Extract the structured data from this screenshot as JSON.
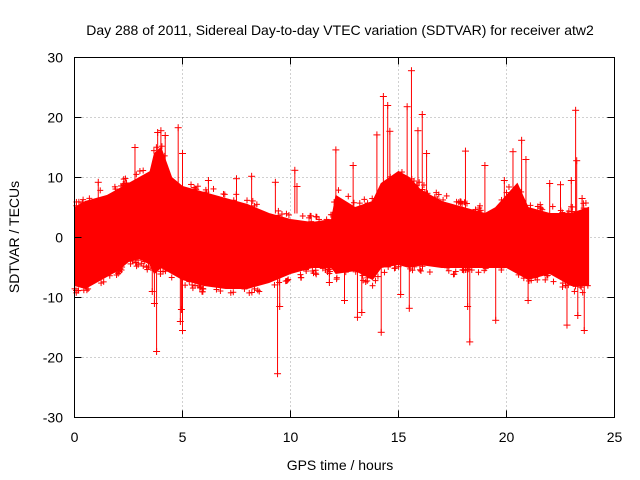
{
  "chart_data": {
    "type": "scatter",
    "title": "Day 288 of 2011, Sidereal Day-to-day VTEC variation (SDTVAR) for receiver atw2",
    "xlabel": "GPS time / hours",
    "ylabel": "SDTVAR / TECUs",
    "xlim": [
      0,
      25
    ],
    "ylim": [
      -30,
      30
    ],
    "xticks": [
      0,
      5,
      10,
      15,
      20,
      25
    ],
    "yticks": [
      -30,
      -20,
      -10,
      0,
      10,
      20,
      30
    ],
    "grid": true,
    "marker": "+",
    "series_color": "#ff0000",
    "band": {
      "x": [
        0.0,
        0.5,
        1.0,
        1.5,
        2.0,
        2.5,
        3.0,
        3.5,
        3.7,
        4.0,
        4.5,
        5.0,
        5.5,
        6.0,
        7.0,
        8.0,
        9.0,
        10.0,
        11.0,
        11.9,
        12.1,
        13.0,
        13.8,
        14.2,
        15.0,
        15.5,
        16.0,
        17.0,
        18.0,
        19.0,
        19.5,
        20.0,
        20.5,
        21.0,
        22.0,
        23.0,
        23.8
      ],
      "upper": [
        5,
        6,
        6.5,
        7,
        8,
        9,
        10,
        11,
        14,
        15,
        10,
        8.5,
        8,
        7.5,
        6.5,
        5.5,
        4,
        3,
        2.5,
        3,
        7,
        5,
        6,
        9,
        11,
        10,
        8,
        6,
        5,
        4,
        5,
        7,
        9,
        5,
        4,
        4,
        5
      ],
      "lower": [
        -8,
        -8.5,
        -7.5,
        -6.5,
        -5.5,
        -4,
        -3.5,
        -4.5,
        -6,
        -5,
        -6,
        -7,
        -7.5,
        -8,
        -8.5,
        -8.5,
        -7.5,
        -6,
        -5,
        -5,
        -6,
        -5.5,
        -7,
        -5,
        -4.5,
        -5,
        -4.5,
        -5,
        -5,
        -5,
        -5,
        -5,
        -6,
        -7,
        -6,
        -8,
        -8
      ]
    },
    "outliers": [
      {
        "x": 3.8,
        "y": -19
      },
      {
        "x": 3.7,
        "y": -11
      },
      {
        "x": 3.6,
        "y": -9
      },
      {
        "x": 3.85,
        "y": 17.5
      },
      {
        "x": 4.0,
        "y": 17.8
      },
      {
        "x": 4.2,
        "y": 17
      },
      {
        "x": 4.8,
        "y": 18.3
      },
      {
        "x": 5.0,
        "y": 14
      },
      {
        "x": 4.9,
        "y": -14
      },
      {
        "x": 5.0,
        "y": -15.5
      },
      {
        "x": 4.95,
        "y": -12
      },
      {
        "x": 2.8,
        "y": 15
      },
      {
        "x": 1.1,
        "y": 9.2
      },
      {
        "x": 6.2,
        "y": 9.5
      },
      {
        "x": 7.5,
        "y": 9.8
      },
      {
        "x": 8.2,
        "y": 10.2
      },
      {
        "x": 9.4,
        "y": -22.7
      },
      {
        "x": 9.3,
        "y": 9.2
      },
      {
        "x": 9.5,
        "y": -11.5
      },
      {
        "x": 10.2,
        "y": 11.2
      },
      {
        "x": 10.3,
        "y": 8.5
      },
      {
        "x": 11.8,
        "y": -7.5
      },
      {
        "x": 12.1,
        "y": 14.6
      },
      {
        "x": 12.5,
        "y": -10.5
      },
      {
        "x": 12.9,
        "y": 12
      },
      {
        "x": 13.1,
        "y": -13.3
      },
      {
        "x": 13.3,
        "y": -12.5
      },
      {
        "x": 14.0,
        "y": 17.1
      },
      {
        "x": 14.2,
        "y": -15.8
      },
      {
        "x": 14.3,
        "y": 23.5
      },
      {
        "x": 14.5,
        "y": 22
      },
      {
        "x": 14.6,
        "y": 17.7
      },
      {
        "x": 15.6,
        "y": 27.8
      },
      {
        "x": 15.4,
        "y": 21.8
      },
      {
        "x": 15.9,
        "y": 17.8
      },
      {
        "x": 15.1,
        "y": -9.5
      },
      {
        "x": 15.5,
        "y": -11.8
      },
      {
        "x": 16.1,
        "y": 20.5
      },
      {
        "x": 16.3,
        "y": 14
      },
      {
        "x": 18.1,
        "y": 14.4
      },
      {
        "x": 18.3,
        "y": -17.4
      },
      {
        "x": 18.2,
        "y": -11.5
      },
      {
        "x": 19.0,
        "y": 12
      },
      {
        "x": 19.5,
        "y": -13.8
      },
      {
        "x": 19.9,
        "y": 9.5
      },
      {
        "x": 20.3,
        "y": 14.3
      },
      {
        "x": 20.7,
        "y": 16.2
      },
      {
        "x": 21.0,
        "y": -10.5
      },
      {
        "x": 20.9,
        "y": 13
      },
      {
        "x": 22.0,
        "y": 9
      },
      {
        "x": 22.5,
        "y": 8.8
      },
      {
        "x": 22.8,
        "y": -14.6
      },
      {
        "x": 23.0,
        "y": 9.5
      },
      {
        "x": 23.2,
        "y": 21.2
      },
      {
        "x": 23.25,
        "y": 12.8
      },
      {
        "x": 23.3,
        "y": -13
      },
      {
        "x": 23.6,
        "y": -15.5
      },
      {
        "x": 23.5,
        "y": 6.5
      }
    ]
  }
}
